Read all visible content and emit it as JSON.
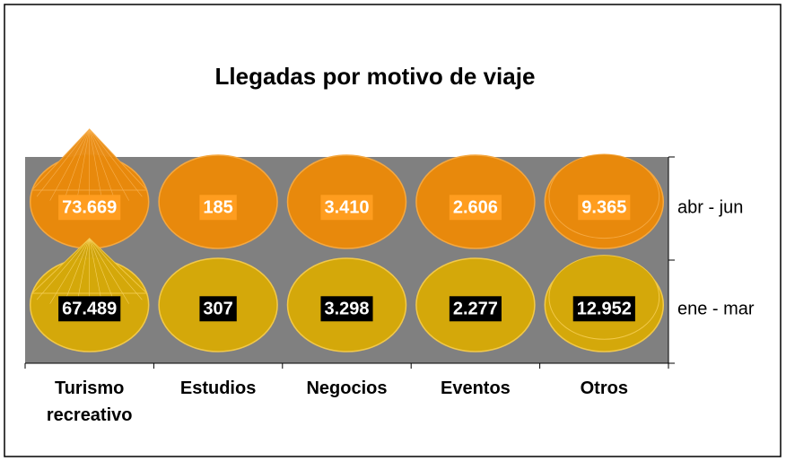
{
  "chart_data": {
    "type": "cone3d",
    "title": "Llegadas por motivo de viaje",
    "categories": [
      "Turismo recreativo",
      "Estudios",
      "Negocios",
      "Eventos",
      "Otros"
    ],
    "series": [
      {
        "name": "abr - jun",
        "color": "#e8890c",
        "values": [
          73669,
          185,
          3410,
          2606,
          9365
        ],
        "value_labels": [
          "73.669",
          "185",
          "3.410",
          "2.606",
          "9.365"
        ]
      },
      {
        "name": "ene - mar",
        "color": "#d4a80a",
        "values": [
          67489,
          307,
          3298,
          2277,
          12952
        ],
        "value_labels": [
          "67.489",
          "307",
          "3.298",
          "2.277",
          "12.952"
        ]
      }
    ]
  }
}
